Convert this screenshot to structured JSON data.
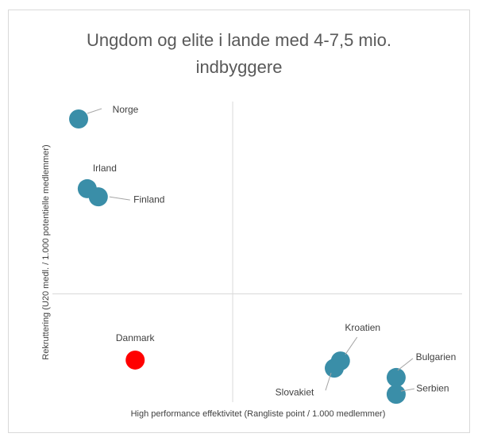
{
  "chart_data": {
    "type": "scatter",
    "title": "Ungdom og elite i lande med 4-7,5 mio. indbyggere",
    "x_label": "High performance effektivitet (Rangliste point / 1.000 medlemmer)",
    "y_label": "Rekruttering (U20 medl. / 1.000 potentielle medlemmer)",
    "labels": [
      "Norge",
      "Irland",
      "Finland",
      "Danmark",
      "Kroatien",
      "Slovakiet",
      "Bulgarien",
      "Serbien"
    ],
    "x": [
      -37.6,
      -35.5,
      -32.8,
      -23.8,
      26.3,
      24.8,
      39.9,
      39.9
    ],
    "values": [
      58.2,
      35.0,
      32.3,
      -22.0,
      -22.3,
      -24.7,
      -27.8,
      -33.4
    ],
    "colors": [
      "#3a8ea8",
      "#3a8ea8",
      "#3a8ea8",
      "#ff0000",
      "#3a8ea8",
      "#3a8ea8",
      "#3a8ea8",
      "#3a8ea8"
    ],
    "xlim": [
      -44,
      56
    ],
    "ylim": [
      -36,
      64
    ]
  }
}
